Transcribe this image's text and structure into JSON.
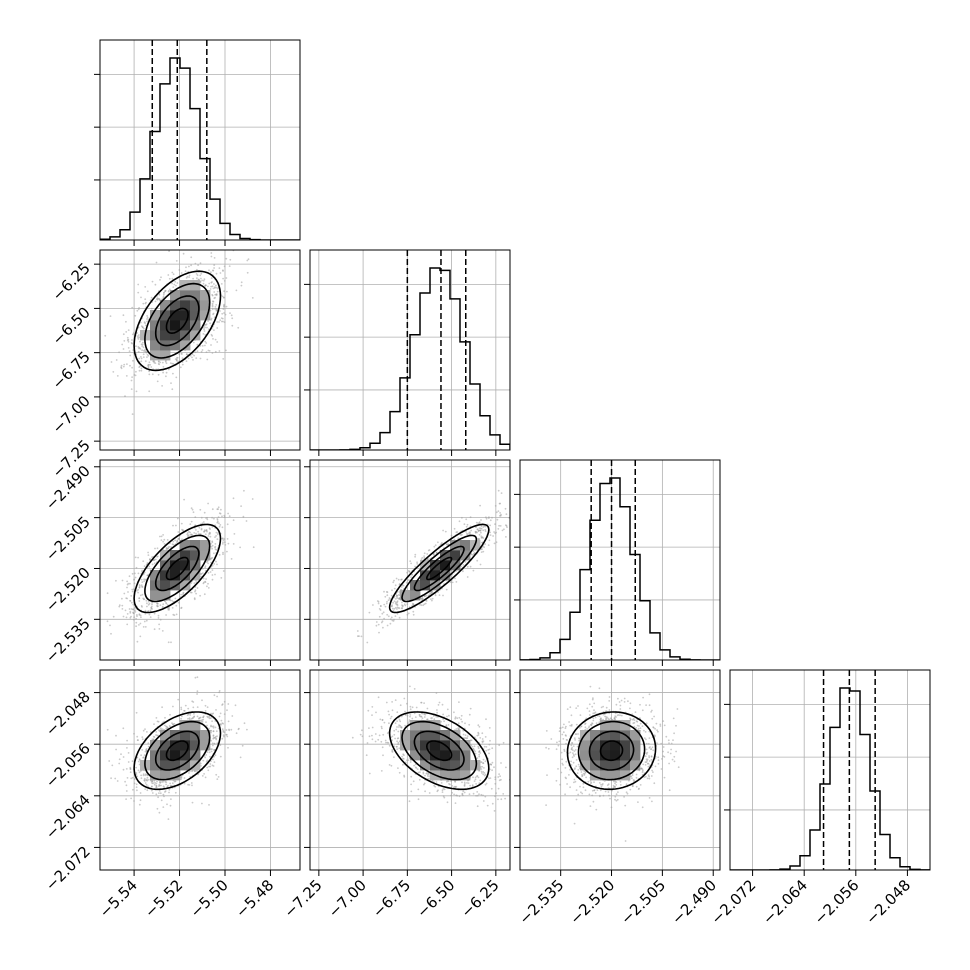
{
  "chart_data": {
    "type": "corner",
    "parameters": [
      {
        "range": [
          -5.555,
          -5.467
        ],
        "ticks": [
          -5.54,
          -5.52,
          -5.5,
          -5.48
        ],
        "tick_labels": [
          "−5.54",
          "−5.52",
          "−5.50",
          "−5.48"
        ],
        "quantiles": [
          -5.532,
          -5.521,
          -5.508
        ],
        "mean": -5.521,
        "sd": 0.0095
      },
      {
        "range": [
          -7.3,
          -6.17
        ],
        "ticks": [
          -7.25,
          -7.0,
          -6.75,
          -6.5,
          -6.25
        ],
        "tick_labels": [
          "−7.25",
          "−7.00",
          "−6.75",
          "−6.50",
          "−6.25"
        ],
        "quantiles": [
          -6.75,
          -6.56,
          -6.42
        ],
        "mean": -6.57,
        "sd": 0.14
      },
      {
        "range": [
          -2.547,
          -2.488
        ],
        "ticks": [
          -2.535,
          -2.52,
          -2.505,
          -2.49
        ],
        "tick_labels": [
          "−2.535",
          "−2.520",
          "−2.505",
          "−2.490"
        ],
        "quantiles": [
          -2.526,
          -2.52,
          -2.513
        ],
        "mean": -2.52,
        "sd": 0.0065
      },
      {
        "range": [
          -2.0755,
          -2.0445
        ],
        "ticks": [
          -2.072,
          -2.064,
          -2.056,
          -2.048
        ],
        "tick_labels": [
          "−2.072",
          "−2.064",
          "−2.056",
          "−2.048"
        ],
        "quantiles": [
          -2.061,
          -2.057,
          -2.053
        ],
        "mean": -2.057,
        "sd": 0.003
      }
    ],
    "correlations": [
      {
        "pair": [
          0,
          1
        ],
        "rho": 0.5
      },
      {
        "pair": [
          0,
          2
        ],
        "rho": 0.68
      },
      {
        "pair": [
          1,
          2
        ],
        "rho": 0.88
      },
      {
        "pair": [
          0,
          3
        ],
        "rho": 0.45
      },
      {
        "pair": [
          1,
          3
        ],
        "rho": -0.45
      },
      {
        "pair": [
          2,
          3
        ],
        "rho": 0.05
      }
    ],
    "histogram_bins": 20,
    "contour_levels_sigma": [
      0.5,
      1.0,
      1.5,
      2.0
    ],
    "grid": true,
    "colors": {
      "line": "#000000",
      "points": "#9e9e9e",
      "grid": "#b0b0b0"
    }
  }
}
